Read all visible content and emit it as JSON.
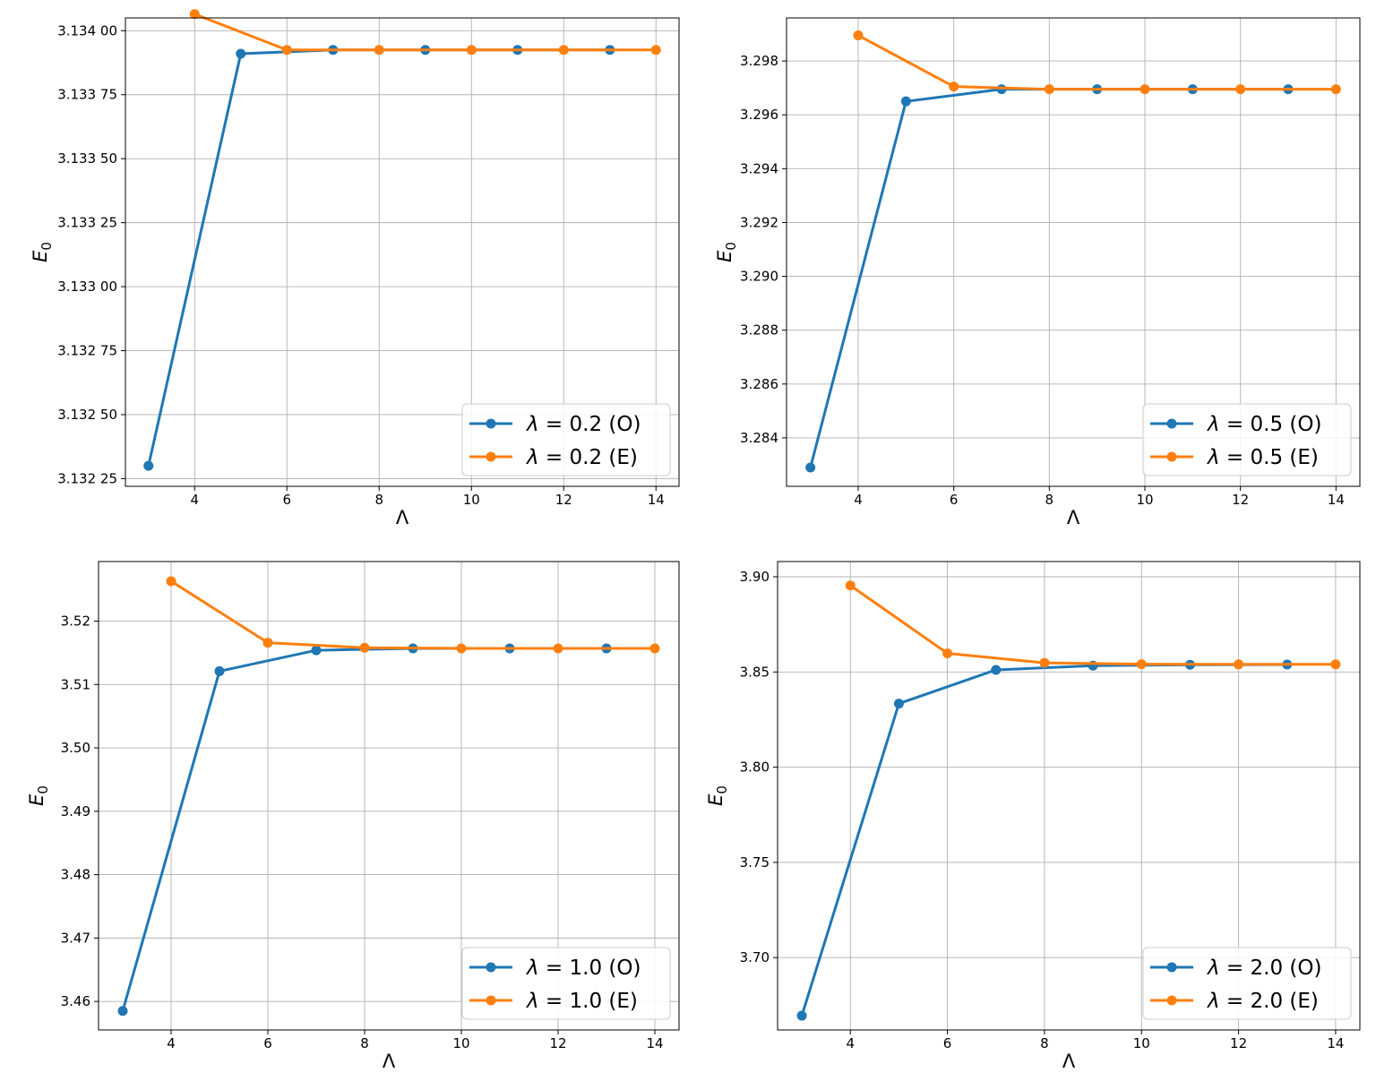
{
  "colors": {
    "series_o": "#1f77b4",
    "series_e": "#ff7f0e",
    "grid": "#b0b0b0",
    "axes": "#000000"
  },
  "chart_data": [
    {
      "type": "line",
      "title": "",
      "xlabel": "Λ",
      "ylabel": "E0",
      "xlim": [
        2.5,
        14.5
      ],
      "ylim": [
        3.13222,
        3.13405
      ],
      "xticks": [
        4,
        6,
        8,
        10,
        12,
        14
      ],
      "yticks": [
        3.13225,
        3.1325,
        3.13275,
        3.133,
        3.13325,
        3.1335,
        3.13375,
        3.134
      ],
      "ytick_labels": [
        "3.132 25",
        "3.132 50",
        "3.132 75",
        "3.133 00",
        "3.133 25",
        "3.133 50",
        "3.133 75",
        "3.134 00"
      ],
      "grid": true,
      "legend_position": "lower-right",
      "series": [
        {
          "name": "λ = 0.2 (O)",
          "color": "series_o",
          "x": [
            3,
            5,
            7,
            9,
            11,
            13
          ],
          "y": [
            3.1323,
            3.13391,
            3.133925,
            3.133925,
            3.133925,
            3.133925
          ]
        },
        {
          "name": "λ = 0.2 (E)",
          "color": "series_e",
          "x": [
            4,
            6,
            8,
            10,
            12,
            14
          ],
          "y": [
            3.134065,
            3.133925,
            3.133925,
            3.133925,
            3.133925,
            3.133925
          ]
        }
      ]
    },
    {
      "type": "line",
      "title": "",
      "xlabel": "Λ",
      "ylabel": "E0",
      "xlim": [
        2.5,
        14.5
      ],
      "ylim": [
        3.2822,
        3.2996
      ],
      "xticks": [
        4,
        6,
        8,
        10,
        12,
        14
      ],
      "yticks": [
        3.284,
        3.286,
        3.288,
        3.29,
        3.292,
        3.294,
        3.296,
        3.298
      ],
      "ytick_labels": [
        "3.284",
        "3.286",
        "3.288",
        "3.290",
        "3.292",
        "3.294",
        "3.296",
        "3.298"
      ],
      "grid": true,
      "legend_position": "lower-right",
      "series": [
        {
          "name": "λ = 0.5 (O)",
          "color": "series_o",
          "x": [
            3,
            5,
            7,
            9,
            11,
            13
          ],
          "y": [
            3.2829,
            3.2965,
            3.29695,
            3.29695,
            3.29695,
            3.29695
          ]
        },
        {
          "name": "λ = 0.5 (E)",
          "color": "series_e",
          "x": [
            4,
            6,
            8,
            10,
            12,
            14
          ],
          "y": [
            3.29895,
            3.29705,
            3.29695,
            3.29695,
            3.29695,
            3.29695
          ]
        }
      ]
    },
    {
      "type": "line",
      "title": "",
      "xlabel": "Λ",
      "ylabel": "E0",
      "xlim": [
        2.5,
        14.5
      ],
      "ylim": [
        3.4555,
        3.5294
      ],
      "xticks": [
        4,
        6,
        8,
        10,
        12,
        14
      ],
      "yticks": [
        3.46,
        3.47,
        3.48,
        3.49,
        3.5,
        3.51,
        3.52
      ],
      "ytick_labels": [
        "3.46",
        "3.47",
        "3.48",
        "3.49",
        "3.50",
        "3.51",
        "3.52"
      ],
      "grid": true,
      "legend_position": "lower-right",
      "series": [
        {
          "name": "λ = 1.0 (O)",
          "color": "series_o",
          "x": [
            3,
            5,
            7,
            9,
            11,
            13
          ],
          "y": [
            3.4585,
            3.5121,
            3.5154,
            3.5157,
            3.5157,
            3.5157
          ]
        },
        {
          "name": "λ = 1.0 (E)",
          "color": "series_e",
          "x": [
            4,
            6,
            8,
            10,
            12,
            14
          ],
          "y": [
            3.5263,
            3.5166,
            3.5158,
            3.5157,
            3.5157,
            3.5157
          ]
        }
      ]
    },
    {
      "type": "line",
      "title": "",
      "xlabel": "Λ",
      "ylabel": "E0",
      "xlim": [
        2.5,
        14.5
      ],
      "ylim": [
        3.662,
        3.908
      ],
      "xticks": [
        4,
        6,
        8,
        10,
        12,
        14
      ],
      "yticks": [
        3.7,
        3.75,
        3.8,
        3.85,
        3.9
      ],
      "ytick_labels": [
        "3.70",
        "3.75",
        "3.80",
        "3.85",
        "3.90"
      ],
      "grid": true,
      "legend_position": "lower-right",
      "series": [
        {
          "name": "λ = 2.0 (O)",
          "color": "series_o",
          "x": [
            3,
            5,
            7,
            9,
            11,
            13
          ],
          "y": [
            3.6695,
            3.8334,
            3.8511,
            3.8533,
            3.8538,
            3.8539
          ]
        },
        {
          "name": "λ = 2.0 (E)",
          "color": "series_e",
          "x": [
            4,
            6,
            8,
            10,
            12,
            14
          ],
          "y": [
            3.8954,
            3.8598,
            3.8548,
            3.8541,
            3.854,
            3.854
          ]
        }
      ]
    }
  ]
}
